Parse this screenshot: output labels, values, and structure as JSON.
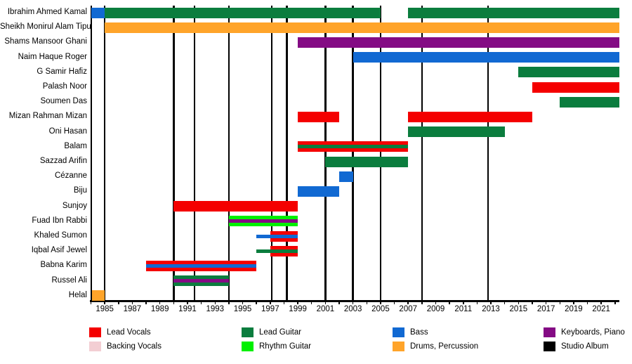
{
  "chart_data": {
    "type": "bar",
    "subtype": "horizontal-gantt-band-member-timeline",
    "title": "",
    "xlabel": "",
    "ylabel": "",
    "grid": false,
    "legend_position": "bottom",
    "x_axis": {
      "min": 1984,
      "max": 2022.6,
      "tick_step_years": 1,
      "label_years": [
        1985,
        1987,
        1989,
        1991,
        1993,
        1995,
        1997,
        1999,
        2001,
        2003,
        2005,
        2007,
        2009,
        2011,
        2013,
        2015,
        2017,
        2019,
        2021
      ]
    },
    "album_marker_years": [
      1985,
      1990,
      1991.5,
      1994,
      1997.1,
      1998.2,
      2001,
      2003,
      2005,
      2008,
      2012.8
    ],
    "colors": {
      "lead_vocals": "#f40000",
      "backing_vocals": "#f3ced3",
      "lead_guitar": "#0b7d3e",
      "rhythm_guitar": "#00f000",
      "bass": "#1169d2",
      "drums_percussion": "#ffa42a",
      "keyboards_piano": "#840b84",
      "studio_album": "#000000"
    },
    "legend": [
      {
        "label": "Lead Vocals",
        "color_key": "lead_vocals"
      },
      {
        "label": "Backing Vocals",
        "color_key": "backing_vocals"
      },
      {
        "label": "Lead Guitar",
        "color_key": "lead_guitar"
      },
      {
        "label": "Rhythm Guitar",
        "color_key": "rhythm_guitar"
      },
      {
        "label": "Bass",
        "color_key": "bass"
      },
      {
        "label": "Drums, Percussion",
        "color_key": "drums_percussion"
      },
      {
        "label": "Keyboards, Piano",
        "color_key": "keyboards_piano"
      },
      {
        "label": "Studio Album",
        "color_key": "studio_album"
      }
    ],
    "members": [
      {
        "name": "Ibrahim Ahmed Kamal",
        "bars": [
          {
            "role": "bass",
            "start": 1984,
            "end": 1985
          },
          {
            "role": "lead_guitar",
            "start": 1985,
            "end": 2005
          },
          {
            "role": "lead_guitar",
            "start": 2007,
            "end": 2022.3
          }
        ]
      },
      {
        "name": "Sheikh Monirul Alam Tipu",
        "bars": [
          {
            "role": "drums_percussion",
            "start": 1985,
            "end": 2022.3
          }
        ]
      },
      {
        "name": "Shams Mansoor Ghani",
        "bars": [
          {
            "role": "keyboards_piano",
            "start": 1999,
            "end": 2022.3
          }
        ]
      },
      {
        "name": "Naim Haque Roger",
        "bars": [
          {
            "role": "bass",
            "start": 2003,
            "end": 2022.3
          }
        ]
      },
      {
        "name": "G Samir Hafiz",
        "bars": [
          {
            "role": "lead_guitar",
            "start": 2015,
            "end": 2022.3
          }
        ]
      },
      {
        "name": "Palash Noor",
        "bars": [
          {
            "role": "lead_vocals",
            "start": 2016,
            "end": 2022.3
          }
        ]
      },
      {
        "name": "Soumen Das",
        "bars": [
          {
            "role": "lead_guitar",
            "start": 2018,
            "end": 2022.3
          }
        ]
      },
      {
        "name": "Mizan Rahman Mizan",
        "bars": [
          {
            "role": "lead_vocals",
            "start": 1999,
            "end": 2002
          },
          {
            "role": "lead_vocals",
            "start": 2007,
            "end": 2016
          }
        ]
      },
      {
        "name": "Oni Hasan",
        "bars": [
          {
            "role": "lead_guitar",
            "start": 2007,
            "end": 2014
          }
        ]
      },
      {
        "name": "Balam",
        "bars": [
          {
            "role": "lead_vocals",
            "stripe": "lead_guitar",
            "start": 1999,
            "end": 2007
          }
        ]
      },
      {
        "name": "Sazzad Arifin",
        "bars": [
          {
            "role": "lead_guitar",
            "start": 2001,
            "end": 2007
          }
        ]
      },
      {
        "name": "Cézanne",
        "bars": [
          {
            "role": "bass",
            "start": 2002,
            "end": 2003
          }
        ]
      },
      {
        "name": "Biju",
        "bars": [
          {
            "role": "bass",
            "start": 1999,
            "end": 2002
          }
        ]
      },
      {
        "name": "Sunjoy",
        "bars": [
          {
            "role": "lead_vocals",
            "start": 1990,
            "end": 1999
          }
        ]
      },
      {
        "name": "Fuad Ibn Rabbi",
        "bars": [
          {
            "role": "rhythm_guitar",
            "stripe": "keyboards_piano",
            "start": 1994,
            "end": 1999
          }
        ]
      },
      {
        "name": "Khaled Sumon",
        "bars": [
          {
            "role": "bass",
            "thin": true,
            "start": 1996,
            "end": 1999
          },
          {
            "role": "lead_vocals",
            "stripe": "bass",
            "start": 1997,
            "end": 1999
          }
        ]
      },
      {
        "name": "Iqbal Asif Jewel",
        "bars": [
          {
            "role": "lead_guitar",
            "thin": true,
            "start": 1996,
            "end": 1999
          },
          {
            "role": "lead_vocals",
            "stripe": "lead_guitar",
            "start": 1997,
            "end": 1999
          }
        ]
      },
      {
        "name": "Babna Karim",
        "bars": [
          {
            "role": "lead_vocals",
            "stripe": "bass",
            "start": 1988,
            "end": 1996
          }
        ]
      },
      {
        "name": "Russel Ali",
        "bars": [
          {
            "role": "lead_guitar",
            "stripe": "keyboards_piano",
            "start": 1990,
            "end": 1994
          }
        ]
      },
      {
        "name": "Helal",
        "bars": [
          {
            "role": "drums_percussion",
            "start": 1984.1,
            "end": 1985
          }
        ]
      }
    ]
  }
}
